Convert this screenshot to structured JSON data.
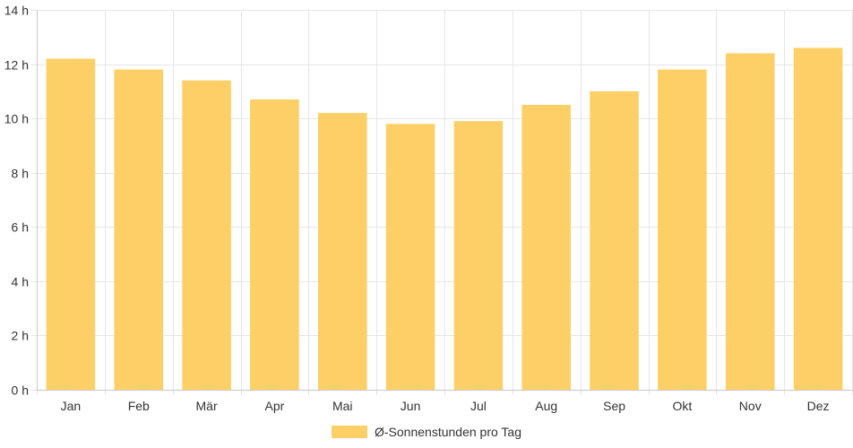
{
  "chart_data": {
    "type": "bar",
    "categories": [
      "Jan",
      "Feb",
      "Mär",
      "Apr",
      "Mai",
      "Jun",
      "Jul",
      "Aug",
      "Sep",
      "Okt",
      "Nov",
      "Dez"
    ],
    "series": [
      {
        "name": "Ø-Sonnenstunden pro Tag",
        "values": [
          12.2,
          11.8,
          11.4,
          10.7,
          10.2,
          9.8,
          9.9,
          10.5,
          11.0,
          11.8,
          12.4,
          12.6
        ],
        "color": "#fdd067"
      }
    ],
    "ylim": [
      0,
      14
    ],
    "yticks": [
      0,
      2,
      4,
      6,
      8,
      10,
      12,
      14
    ],
    "ytick_labels": [
      "0 h",
      "2 h",
      "4 h",
      "6 h",
      "8 h",
      "10 h",
      "12 h",
      "14 h"
    ],
    "grid": true,
    "legend_position": "bottom-center",
    "colors": {
      "grid": "#e6e6e6",
      "axis": "#c8c8c8",
      "text": "#333333"
    }
  }
}
